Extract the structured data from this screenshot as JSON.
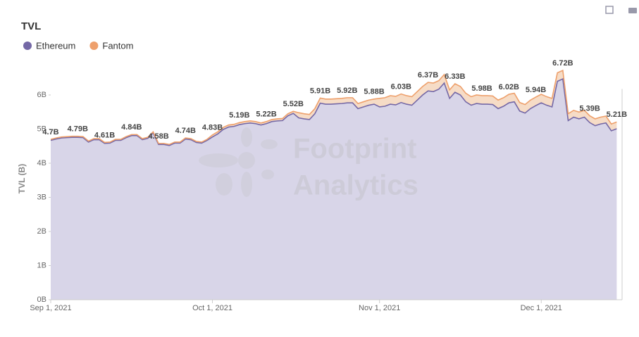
{
  "chart_data": {
    "type": "stacked-area",
    "title": "TVL",
    "y_label": "TVL (B)",
    "watermark": [
      "Footprint",
      "Analytics"
    ],
    "legend": "top-left",
    "xlim": [
      "2021-09-01",
      "2021-12-16"
    ],
    "xticks": [
      {
        "value": "2021-09-01",
        "label": "Sep 1, 2021"
      },
      {
        "value": "2021-10-01",
        "label": "Oct 1, 2021"
      },
      {
        "value": "2021-11-01",
        "label": "Nov 1, 2021"
      },
      {
        "value": "2021-12-01",
        "label": "Dec 1, 2021"
      }
    ],
    "ylim": [
      0,
      7
    ],
    "yticks": [
      {
        "value": 0,
        "label": "0B"
      },
      {
        "value": 1,
        "label": "1B"
      },
      {
        "value": 2,
        "label": "2B"
      },
      {
        "value": 3,
        "label": "3B"
      },
      {
        "value": 4,
        "label": "4B"
      },
      {
        "value": 5,
        "label": "5B"
      },
      {
        "value": 6,
        "label": "6B"
      }
    ],
    "x": [
      "2021-09-01",
      "2021-09-02",
      "2021-09-03",
      "2021-09-04",
      "2021-09-05",
      "2021-09-06",
      "2021-09-07",
      "2021-09-08",
      "2021-09-09",
      "2021-09-10",
      "2021-09-11",
      "2021-09-12",
      "2021-09-13",
      "2021-09-14",
      "2021-09-15",
      "2021-09-16",
      "2021-09-17",
      "2021-09-18",
      "2021-09-19",
      "2021-09-20",
      "2021-09-21",
      "2021-09-22",
      "2021-09-23",
      "2021-09-24",
      "2021-09-25",
      "2021-09-26",
      "2021-09-27",
      "2021-09-28",
      "2021-09-29",
      "2021-09-30",
      "2021-10-01",
      "2021-10-02",
      "2021-10-03",
      "2021-10-04",
      "2021-10-05",
      "2021-10-06",
      "2021-10-07",
      "2021-10-08",
      "2021-10-09",
      "2021-10-10",
      "2021-10-11",
      "2021-10-12",
      "2021-10-13",
      "2021-10-14",
      "2021-10-15",
      "2021-10-16",
      "2021-10-17",
      "2021-10-18",
      "2021-10-19",
      "2021-10-20",
      "2021-10-21",
      "2021-10-22",
      "2021-10-23",
      "2021-10-24",
      "2021-10-25",
      "2021-10-26",
      "2021-10-27",
      "2021-10-28",
      "2021-10-29",
      "2021-10-30",
      "2021-10-31",
      "2021-11-01",
      "2021-11-02",
      "2021-11-03",
      "2021-11-04",
      "2021-11-05",
      "2021-11-06",
      "2021-11-07",
      "2021-11-08",
      "2021-11-09",
      "2021-11-10",
      "2021-11-11",
      "2021-11-12",
      "2021-11-13",
      "2021-11-14",
      "2021-11-15",
      "2021-11-16",
      "2021-11-17",
      "2021-11-18",
      "2021-11-19",
      "2021-11-20",
      "2021-11-21",
      "2021-11-22",
      "2021-11-23",
      "2021-11-24",
      "2021-11-25",
      "2021-11-26",
      "2021-11-27",
      "2021-11-28",
      "2021-11-29",
      "2021-11-30",
      "2021-12-01",
      "2021-12-02",
      "2021-12-03",
      "2021-12-04",
      "2021-12-05",
      "2021-12-06",
      "2021-12-07",
      "2021-12-08",
      "2021-12-09",
      "2021-12-10",
      "2021-12-11",
      "2021-12-12",
      "2021-12-13",
      "2021-12-14",
      "2021-12-15"
    ],
    "series": [
      {
        "name": "Ethereum",
        "color": "#7468a6",
        "fill": "#d8d5e8",
        "values": [
          4.67,
          4.71,
          4.74,
          4.75,
          4.76,
          4.76,
          4.75,
          4.62,
          4.69,
          4.69,
          4.58,
          4.59,
          4.67,
          4.67,
          4.75,
          4.81,
          4.81,
          4.69,
          4.73,
          4.89,
          4.55,
          4.55,
          4.52,
          4.59,
          4.59,
          4.71,
          4.69,
          4.61,
          4.59,
          4.67,
          4.77,
          4.86,
          4.99,
          5.06,
          5.08,
          5.13,
          5.16,
          5.18,
          5.16,
          5.12,
          5.16,
          5.22,
          5.24,
          5.25,
          5.39,
          5.46,
          5.33,
          5.3,
          5.28,
          5.45,
          5.76,
          5.73,
          5.73,
          5.74,
          5.75,
          5.77,
          5.77,
          5.6,
          5.65,
          5.7,
          5.73,
          5.65,
          5.67,
          5.73,
          5.71,
          5.78,
          5.73,
          5.7,
          5.85,
          6.0,
          6.12,
          6.1,
          6.17,
          6.35,
          5.9,
          6.08,
          6.0,
          5.8,
          5.7,
          5.75,
          5.73,
          5.73,
          5.72,
          5.6,
          5.67,
          5.77,
          5.8,
          5.53,
          5.47,
          5.6,
          5.69,
          5.77,
          5.7,
          5.65,
          6.4,
          6.47,
          5.25,
          5.35,
          5.3,
          5.35,
          5.19,
          5.1,
          5.15,
          5.18,
          4.95,
          5.01
        ]
      },
      {
        "name": "Fantom",
        "color": "#eea06c",
        "fill": "#f6dcc6",
        "values": [
          0.03,
          0.03,
          0.03,
          0.03,
          0.03,
          0.03,
          0.03,
          0.03,
          0.03,
          0.03,
          0.03,
          0.03,
          0.03,
          0.03,
          0.03,
          0.03,
          0.03,
          0.03,
          0.03,
          0.03,
          0.03,
          0.03,
          0.03,
          0.03,
          0.03,
          0.03,
          0.03,
          0.03,
          0.03,
          0.03,
          0.06,
          0.06,
          0.06,
          0.06,
          0.06,
          0.06,
          0.06,
          0.06,
          0.06,
          0.06,
          0.06,
          0.06,
          0.06,
          0.06,
          0.06,
          0.06,
          0.15,
          0.15,
          0.15,
          0.15,
          0.15,
          0.15,
          0.15,
          0.15,
          0.15,
          0.15,
          0.15,
          0.15,
          0.15,
          0.15,
          0.15,
          0.25,
          0.25,
          0.25,
          0.25,
          0.25,
          0.25,
          0.25,
          0.25,
          0.25,
          0.25,
          0.25,
          0.25,
          0.25,
          0.25,
          0.25,
          0.25,
          0.25,
          0.25,
          0.25,
          0.25,
          0.25,
          0.25,
          0.25,
          0.25,
          0.25,
          0.25,
          0.25,
          0.25,
          0.25,
          0.25,
          0.25,
          0.25,
          0.25,
          0.25,
          0.25,
          0.2,
          0.2,
          0.2,
          0.2,
          0.2,
          0.2,
          0.2,
          0.2,
          0.2,
          0.2
        ]
      }
    ],
    "annotations": [
      {
        "x": "2021-09-01",
        "text": "4.7B"
      },
      {
        "x": "2021-09-06",
        "text": "4.79B"
      },
      {
        "x": "2021-09-11",
        "text": "4.61B"
      },
      {
        "x": "2021-09-16",
        "text": "4.84B"
      },
      {
        "x": "2021-09-21",
        "text": "4.58B"
      },
      {
        "x": "2021-09-26",
        "text": "4.74B"
      },
      {
        "x": "2021-10-01",
        "text": "4.83B"
      },
      {
        "x": "2021-10-06",
        "text": "5.19B"
      },
      {
        "x": "2021-10-11",
        "text": "5.22B"
      },
      {
        "x": "2021-10-16",
        "text": "5.52B"
      },
      {
        "x": "2021-10-21",
        "text": "5.91B"
      },
      {
        "x": "2021-10-26",
        "text": "5.92B"
      },
      {
        "x": "2021-10-31",
        "text": "5.88B"
      },
      {
        "x": "2021-11-05",
        "text": "6.03B"
      },
      {
        "x": "2021-11-10",
        "text": "6.37B"
      },
      {
        "x": "2021-11-15",
        "text": "6.33B"
      },
      {
        "x": "2021-11-20",
        "text": "5.98B"
      },
      {
        "x": "2021-11-25",
        "text": "6.02B"
      },
      {
        "x": "2021-11-30",
        "text": "5.94B"
      },
      {
        "x": "2021-12-05",
        "text": "6.72B"
      },
      {
        "x": "2021-12-10",
        "text": "5.39B"
      },
      {
        "x": "2021-12-15",
        "text": "5.21B"
      }
    ]
  }
}
